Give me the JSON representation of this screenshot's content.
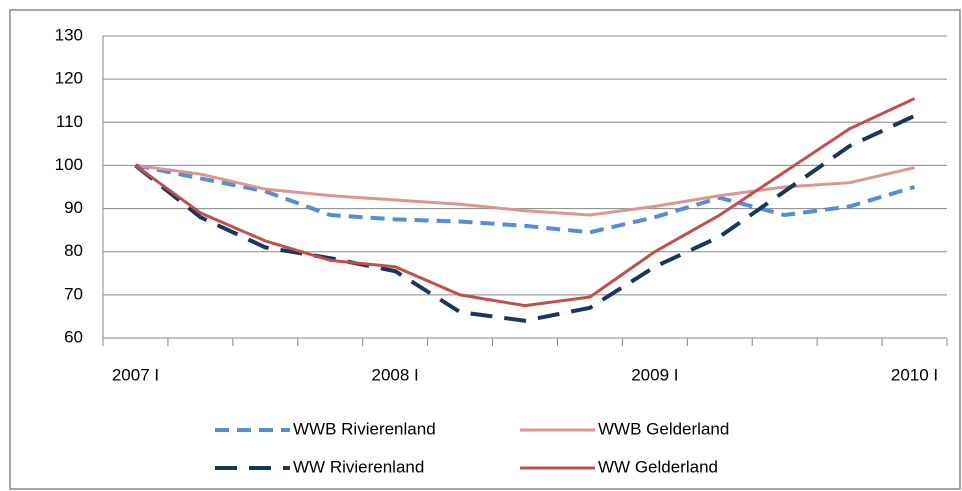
{
  "chart_data": {
    "type": "line",
    "categories": [
      "2007 I",
      null,
      null,
      null,
      "2008 I",
      null,
      null,
      null,
      "2009 I",
      null,
      null,
      null,
      "2010 I"
    ],
    "series": [
      {
        "name": "WWB Rivierenland",
        "color": "#558ed5",
        "dash": true,
        "values": [
          100,
          97,
          94,
          88.5,
          87.5,
          87,
          86,
          84.5,
          88,
          92.5,
          88.5,
          90.5,
          95
        ]
      },
      {
        "name": "WWB Gelderland",
        "color": "#d99694",
        "dash": false,
        "values": [
          100,
          98,
          94.5,
          93,
          92,
          91,
          89.5,
          88.5,
          90.5,
          93,
          95,
          96,
          99.5
        ]
      },
      {
        "name": "WW Rivierenland",
        "color": "#17375e",
        "dash": true,
        "values": [
          100,
          88,
          81,
          78.5,
          75.5,
          66,
          64,
          67,
          76.5,
          83.5,
          94,
          104.5,
          111.5
        ]
      },
      {
        "name": "WW Gelderland",
        "color": "#c0504d",
        "dash": false,
        "values": [
          100,
          89,
          82.5,
          78,
          76.5,
          70,
          67.5,
          69.5,
          80,
          88.5,
          98.5,
          108.5,
          115.5
        ]
      }
    ],
    "ylim": [
      60,
      130
    ],
    "yticks": [
      60,
      70,
      80,
      90,
      100,
      110,
      120,
      130
    ],
    "grid": true
  }
}
